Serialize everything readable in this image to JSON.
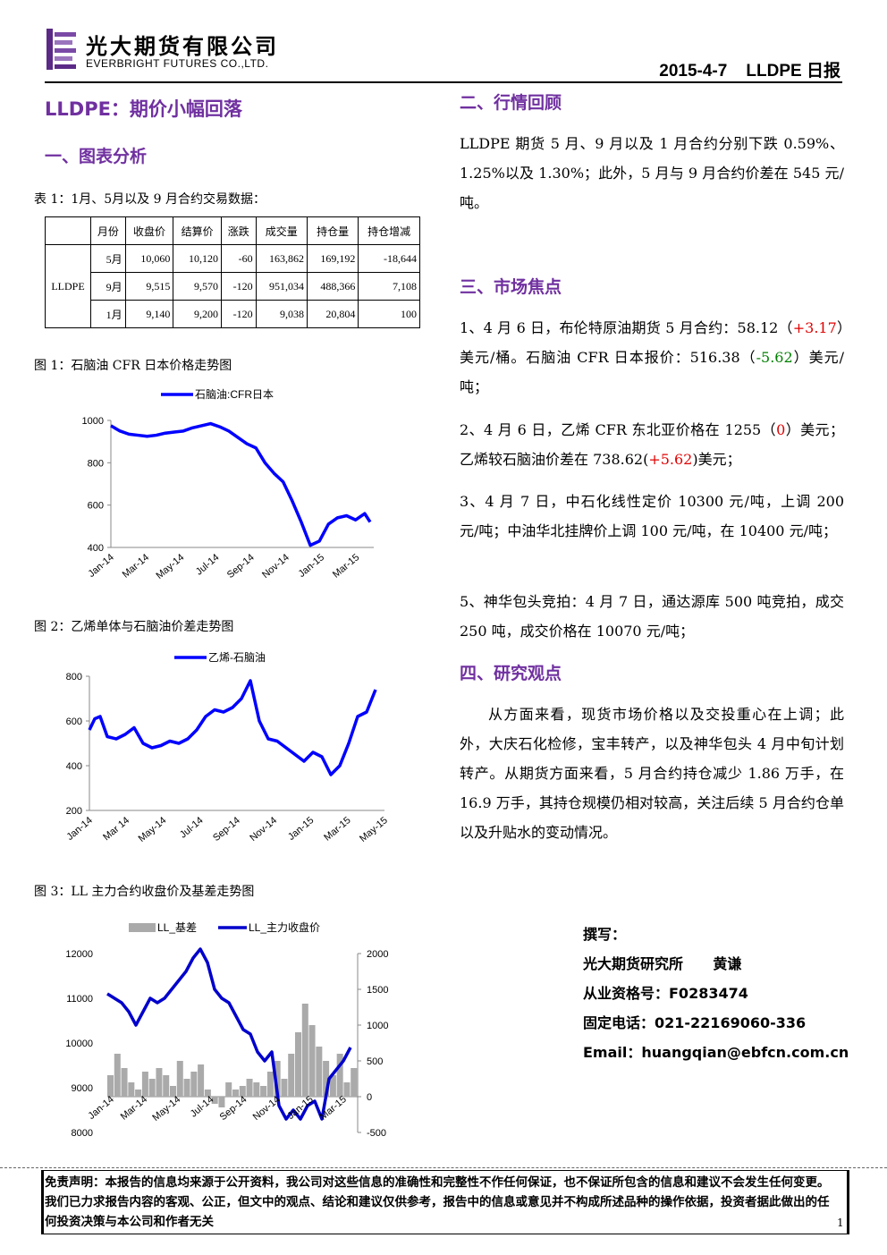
{
  "header": {
    "company_cn": "光大期货有限公司",
    "company_en": "EVERBRIGHT FUTURES CO.,LTD.",
    "date_title": "2015-4-7    LLDPE 日报"
  },
  "title": "LLDPE：期价小幅回落",
  "section1": {
    "heading": "一、图表分析",
    "table_caption": "表 1：1月、5月以及 9 月合约交易数据：",
    "table": {
      "headers": [
        "",
        "月份",
        "收盘价",
        "结算价",
        "涨跌",
        "成交量",
        "持仓量",
        "持仓增减"
      ],
      "row_label": "LLDPE",
      "rows": [
        [
          "5月",
          "10,060",
          "10,120",
          "-60",
          "163,862",
          "169,192",
          "-18,644"
        ],
        [
          "9月",
          "9,515",
          "9,570",
          "-120",
          "951,034",
          "488,366",
          "7,108"
        ],
        [
          "1月",
          "9,140",
          "9,200",
          "-120",
          "9,038",
          "20,804",
          "100"
        ]
      ]
    },
    "fig1_caption": "图 1：石脑油 CFR 日本价格走势图",
    "fig2_caption": "图 2：乙烯单体与石脑油价差走势图",
    "fig3_caption": "图 3：LL 主力合约收盘价及基差走势图"
  },
  "chart_data": [
    {
      "type": "line",
      "legend": [
        "石脑油:CFR日本"
      ],
      "x_ticks": [
        "Jan-14",
        "Mar-14",
        "May-14",
        "Jul-14",
        "Sep-14",
        "Nov-14",
        "Jan-15",
        "Mar-15"
      ],
      "y_ticks": [
        "400",
        "600",
        "800",
        "1000"
      ],
      "ylim": [
        400,
        1000
      ],
      "series": [
        {
          "name": "石脑油:CFR日本",
          "color": "#0000ff",
          "x": [
            0,
            0.5,
            1,
            1.5,
            2,
            2.5,
            3,
            3.5,
            4,
            4.5,
            5,
            5.5,
            6,
            6.5,
            7,
            7.5,
            8,
            8.5,
            9,
            9.5,
            10,
            10.5,
            11,
            11.5,
            12,
            12.5,
            13,
            13.5,
            14,
            14.3
          ],
          "values": [
            975,
            950,
            935,
            930,
            925,
            930,
            940,
            945,
            950,
            965,
            975,
            985,
            970,
            950,
            920,
            890,
            870,
            800,
            750,
            710,
            620,
            520,
            410,
            430,
            510,
            540,
            550,
            530,
            560,
            520
          ]
        }
      ]
    },
    {
      "type": "line",
      "legend": [
        "乙烯-石脑油"
      ],
      "x_ticks": [
        "Jan-14",
        "Mar 14",
        "May-14",
        "Jul-14",
        "Sep-14",
        "Nov-14",
        "Jan-15",
        "Mar-15",
        "May-15"
      ],
      "y_ticks": [
        "200",
        "400",
        "600",
        "800"
      ],
      "ylim": [
        200,
        800
      ],
      "series": [
        {
          "name": "乙烯-石脑油",
          "color": "#0000ff",
          "x": [
            0,
            0.3,
            0.6,
            1,
            1.5,
            2,
            2.5,
            3,
            3.5,
            4,
            4.5,
            5,
            5.5,
            6,
            6.5,
            7,
            7.5,
            8,
            8.5,
            9,
            9.5,
            10,
            10.5,
            11,
            11.5,
            12,
            12.5,
            13,
            13.5,
            14,
            14.5,
            15,
            15.5,
            16
          ],
          "values": [
            560,
            610,
            620,
            530,
            520,
            540,
            570,
            500,
            480,
            490,
            510,
            500,
            520,
            560,
            620,
            650,
            640,
            660,
            700,
            780,
            600,
            520,
            510,
            480,
            450,
            420,
            460,
            440,
            360,
            400,
            500,
            620,
            640,
            740
          ]
        }
      ]
    },
    {
      "type": "bar+line",
      "legend": [
        "LL_基差",
        "LL_主力收盘价"
      ],
      "x_ticks": [
        "Jan-14",
        "Mar-14",
        "May-14",
        "Jul-14",
        "Sep-14",
        "Nov-14",
        "Jan-15",
        "Mar-15"
      ],
      "y_ticks_left": [
        "8000",
        "9000",
        "10000",
        "11000",
        "12000"
      ],
      "y_ticks_right": [
        "-500",
        "0",
        "500",
        "1000",
        "1500",
        "2000"
      ],
      "ylim_left": [
        8000,
        12000
      ],
      "ylim_right": [
        -500,
        2000
      ],
      "series": [
        {
          "name": "LL_基差",
          "color": "#aaaaaa",
          "x": [
            0,
            1,
            2,
            3,
            4,
            5,
            6,
            7,
            8,
            9,
            10,
            11,
            12,
            13,
            14,
            15,
            16,
            17,
            18,
            19,
            20,
            21,
            22,
            23,
            24,
            25,
            26,
            27,
            28,
            29,
            30,
            31,
            32,
            33,
            34,
            35
          ],
          "values": [
            300,
            600,
            400,
            200,
            100,
            350,
            250,
            400,
            300,
            150,
            500,
            250,
            350,
            450,
            100,
            -100,
            -150,
            200,
            100,
            150,
            250,
            200,
            150,
            350,
            500,
            250,
            600,
            900,
            1300,
            1000,
            700,
            500,
            300,
            600,
            200,
            400
          ]
        },
        {
          "name": "LL_主力收盘价",
          "color": "#0000cc",
          "x": [
            0,
            0.5,
            1,
            1.5,
            2,
            2.5,
            3,
            3.5,
            4,
            4.5,
            5,
            5.5,
            6,
            6.5,
            7,
            7.5,
            8,
            8.5,
            9,
            9.5,
            10,
            10.5,
            11,
            11.5,
            12,
            12.5,
            13,
            13.5,
            14,
            14.5,
            15,
            15.5,
            16,
            16.5,
            17
          ],
          "values": [
            11100,
            11000,
            10900,
            10700,
            10400,
            10700,
            11000,
            10900,
            11000,
            11200,
            11400,
            11600,
            11900,
            12100,
            11800,
            11200,
            11000,
            10900,
            10600,
            10300,
            10200,
            9800,
            9600,
            9800,
            8600,
            8300,
            8500,
            8300,
            8600,
            8700,
            8300,
            9200,
            9400,
            9600,
            9900
          ]
        }
      ]
    }
  ],
  "section2": {
    "heading": "二、行情回顾",
    "text": "LLDPE 期货 5 月、9 月以及 1 月合约分别下跌 0.59%、1.25%以及 1.30%；此外，5 月与 9 月合约价差在 545 元/吨。"
  },
  "section3": {
    "heading": "三、市场焦点",
    "p1_a": "1、4 月 6 日，布伦特原油期货 5 月合约：58.12（",
    "p1_b": "+3.17",
    "p1_c": "）美元/桶。石脑油 CFR 日本报价：516.38（",
    "p1_d": "-5.62",
    "p1_e": "）美元/吨；",
    "p2_a": "2、4 月 6 日，乙烯 CFR 东北亚价格在 1255（",
    "p2_b": "0",
    "p2_c": "）美元；乙烯较石脑油价差在 738.62(",
    "p2_d": "+5.62",
    "p2_e": ")美元；",
    "p3": "3、4 月 7 日，中石化线性定价 10300 元/吨，上调 200 元/吨；中油华北挂牌价上调 100 元/吨，在 10400 元/吨；",
    "p5": "5、神华包头竞拍：4 月 7 日，通达源库 500 吨竞拍，成交 250 吨，成交价格在 10070 元/吨；"
  },
  "section4": {
    "heading": "四、研究观点",
    "text": "从方面来看，现货市场价格以及交投重心在上调；此外，大庆石化检修，宝丰转产，以及神华包头 4 月中旬计划转产。从期货方面来看，5 月合约持仓减少 1.86 万手，在 16.9 万手，其持仓规模仍相对较高，关注后续 5 月合约仓单以及升贴水的变动情况。"
  },
  "author": {
    "label": "撰写：",
    "name": "光大期货研究所      黄谦",
    "license": "从业资格号：F0283474",
    "phone": "固定电话：021-22169060-336",
    "email": "Email：huangqian@ebfcn.com.cn"
  },
  "disclaimer": "免责声明：本报告的信息均来源于公开资料，我公司对这些信息的准确性和完整性不作任何保证，也不保证所包含的信息和建议不会发生任何变更。我们已力求报告内容的客观、公正，但文中的观点、结论和建议仅供参考，报告中的信息或意见并不构成所述品种的操作依据，投资者据此做出的任何投资决策与本公司和作者无关",
  "page_number": "1"
}
